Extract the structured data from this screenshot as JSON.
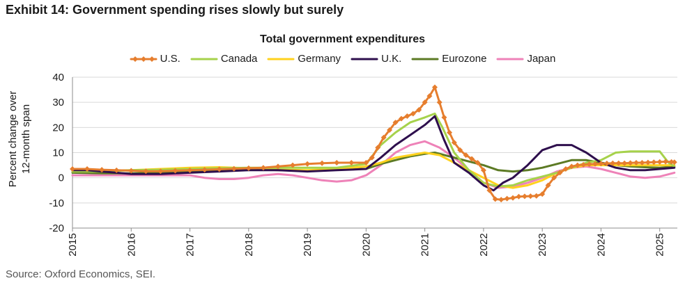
{
  "exhibit_title": "Exhibit 14: Government spending rises slowly but surely",
  "source": "Source: Oxford Economics, SEI.",
  "colors": {
    "US": "#E67E2E",
    "Canada": "#A6D24B",
    "Germany": "#FFD21E",
    "UK": "#2E0F4D",
    "Eurozone": "#5C7A24",
    "Japan": "#EE82B8",
    "grid": "#D9D9D9",
    "axis": "#8c8c8c"
  },
  "chart_data": {
    "type": "line",
    "title": "Total government expenditures",
    "xlabel": "",
    "ylabel": "Percent change over 12-month span",
    "ylabel_lines": [
      "Percent change over",
      "12-month span"
    ],
    "ylim": [
      -20,
      40
    ],
    "yticks": [
      -20,
      -10,
      0,
      10,
      20,
      30,
      40
    ],
    "xlim": [
      2015,
      2025.3
    ],
    "xticks": [
      "2015",
      "2016",
      "2017",
      "2018",
      "2019",
      "2020",
      "2021",
      "2022",
      "2023",
      "2024",
      "2025"
    ],
    "grid": true,
    "legend_position": "top",
    "series": [
      {
        "name": "U.S.",
        "key": "US",
        "marker": "diamond",
        "x": [
          2015.0,
          2015.25,
          2015.5,
          2015.75,
          2016.0,
          2016.25,
          2016.5,
          2016.75,
          2017.0,
          2017.25,
          2017.5,
          2017.75,
          2018.0,
          2018.25,
          2018.5,
          2018.75,
          2019.0,
          2019.25,
          2019.5,
          2019.75,
          2020.0,
          2020.1,
          2020.2,
          2020.3,
          2020.4,
          2020.5,
          2020.6,
          2020.7,
          2020.8,
          2020.9,
          2021.0,
          2021.08,
          2021.17,
          2021.25,
          2021.33,
          2021.42,
          2021.5,
          2021.6,
          2021.7,
          2021.8,
          2021.9,
          2022.0,
          2022.1,
          2022.2,
          2022.3,
          2022.4,
          2022.5,
          2022.6,
          2022.7,
          2022.8,
          2022.9,
          2023.0,
          2023.1,
          2023.2,
          2023.3,
          2023.4,
          2023.5,
          2023.6,
          2023.7,
          2023.8,
          2023.9,
          2024.0,
          2024.1,
          2024.2,
          2024.3,
          2024.4,
          2024.5,
          2024.6,
          2024.7,
          2024.8,
          2024.9,
          2025.0,
          2025.1,
          2025.2,
          2025.25
        ],
        "values": [
          3.5,
          3.5,
          3.2,
          3.0,
          2.8,
          2.6,
          2.6,
          2.8,
          3.0,
          3.2,
          3.4,
          3.6,
          3.8,
          4.0,
          4.5,
          5.0,
          5.5,
          5.8,
          6.0,
          6.0,
          6.0,
          8.0,
          12.0,
          16.0,
          19.0,
          22.0,
          23.5,
          24.5,
          25.5,
          27.0,
          30.0,
          32.5,
          36.0,
          30.0,
          24.0,
          18.0,
          14.0,
          11.0,
          9.0,
          7.5,
          6.0,
          3.0,
          -5.0,
          -8.5,
          -8.7,
          -8.3,
          -8.0,
          -7.5,
          -7.4,
          -7.3,
          -7.2,
          -6.5,
          -3.0,
          0.0,
          2.0,
          3.5,
          4.5,
          5.0,
          5.2,
          5.4,
          5.5,
          5.6,
          5.7,
          5.8,
          5.8,
          5.8,
          5.9,
          6.0,
          6.0,
          6.1,
          6.2,
          6.3,
          6.4,
          6.3,
          6.2
        ]
      },
      {
        "name": "Canada",
        "key": "Canada",
        "x": [
          2015.0,
          2015.5,
          2016.0,
          2016.5,
          2017.0,
          2017.5,
          2018.0,
          2018.5,
          2019.0,
          2019.5,
          2020.0,
          2020.25,
          2020.5,
          2020.75,
          2021.0,
          2021.17,
          2021.3,
          2021.5,
          2021.75,
          2022.0,
          2022.25,
          2022.5,
          2022.75,
          2023.0,
          2023.25,
          2023.5,
          2023.75,
          2024.0,
          2024.25,
          2024.5,
          2024.75,
          2025.0,
          2025.15,
          2025.25
        ],
        "values": [
          2.5,
          2.5,
          3.0,
          3.2,
          3.5,
          3.8,
          4.0,
          4.0,
          4.0,
          4.0,
          5.5,
          13.0,
          18.0,
          22.0,
          24.0,
          25.5,
          20.0,
          10.0,
          3.0,
          -2.0,
          -3.5,
          -3.0,
          -1.0,
          0.5,
          2.0,
          4.0,
          6.0,
          7.0,
          10.0,
          10.5,
          10.5,
          10.5,
          6.0,
          4.5
        ]
      },
      {
        "name": "Germany",
        "key": "Germany",
        "x": [
          2015.0,
          2015.5,
          2016.0,
          2016.5,
          2017.0,
          2017.5,
          2018.0,
          2018.5,
          2019.0,
          2019.5,
          2020.0,
          2020.25,
          2020.5,
          2020.75,
          2021.0,
          2021.25,
          2021.5,
          2021.75,
          2022.0,
          2022.25,
          2022.5,
          2022.75,
          2023.0,
          2023.25,
          2023.5,
          2023.75,
          2024.0,
          2024.25,
          2024.5,
          2024.75,
          2025.0,
          2025.25
        ],
        "values": [
          2.5,
          2.8,
          3.0,
          3.5,
          4.0,
          4.2,
          3.8,
          3.2,
          3.0,
          3.5,
          4.5,
          6.0,
          8.0,
          9.0,
          10.0,
          9.0,
          6.0,
          3.0,
          0.0,
          -3.0,
          -4.0,
          -3.0,
          -1.0,
          2.0,
          4.0,
          5.0,
          5.0,
          5.0,
          5.0,
          5.0,
          5.0,
          5.0
        ]
      },
      {
        "name": "U.K.",
        "key": "UK",
        "x": [
          2015.0,
          2015.25,
          2015.5,
          2015.75,
          2016.0,
          2016.5,
          2017.0,
          2017.5,
          2018.0,
          2018.5,
          2019.0,
          2019.5,
          2020.0,
          2020.25,
          2020.5,
          2020.75,
          2021.0,
          2021.17,
          2021.33,
          2021.5,
          2021.75,
          2022.0,
          2022.17,
          2022.33,
          2022.5,
          2022.75,
          2023.0,
          2023.25,
          2023.5,
          2023.75,
          2024.0,
          2024.25,
          2024.5,
          2024.75,
          2025.0,
          2025.25
        ],
        "values": [
          3.0,
          3.0,
          2.5,
          2.0,
          1.5,
          1.5,
          2.0,
          2.5,
          3.0,
          3.0,
          2.5,
          3.0,
          3.5,
          8.0,
          13.0,
          17.0,
          21.0,
          24.5,
          15.0,
          6.0,
          2.0,
          -3.0,
          -5.0,
          -2.0,
          0.0,
          5.0,
          11.0,
          13.0,
          13.0,
          10.0,
          6.0,
          4.0,
          3.0,
          3.0,
          3.5,
          4.0
        ]
      },
      {
        "name": "Eurozone",
        "key": "Eurozone",
        "x": [
          2015.0,
          2015.5,
          2016.0,
          2016.5,
          2017.0,
          2017.5,
          2018.0,
          2018.5,
          2019.0,
          2019.5,
          2020.0,
          2020.25,
          2020.5,
          2020.75,
          2021.0,
          2021.17,
          2021.5,
          2021.75,
          2022.0,
          2022.25,
          2022.5,
          2022.75,
          2023.0,
          2023.25,
          2023.5,
          2023.75,
          2024.0,
          2024.25,
          2024.5,
          2024.75,
          2025.0,
          2025.25
        ],
        "values": [
          2.0,
          1.8,
          1.8,
          2.0,
          2.5,
          3.0,
          3.5,
          3.0,
          2.8,
          3.5,
          3.5,
          5.5,
          7.0,
          8.5,
          9.5,
          10.0,
          8.0,
          6.5,
          5.0,
          3.0,
          2.5,
          3.0,
          4.0,
          5.5,
          7.0,
          7.0,
          6.0,
          5.0,
          4.5,
          4.2,
          4.0,
          4.5
        ]
      },
      {
        "name": "Japan",
        "key": "Japan",
        "x": [
          2015.0,
          2015.5,
          2016.0,
          2016.5,
          2017.0,
          2017.25,
          2017.5,
          2017.75,
          2018.0,
          2018.25,
          2018.5,
          2018.75,
          2019.0,
          2019.25,
          2019.5,
          2019.75,
          2020.0,
          2020.25,
          2020.5,
          2020.75,
          2021.0,
          2021.25,
          2021.5,
          2021.75,
          2022.0,
          2022.25,
          2022.5,
          2022.75,
          2023.0,
          2023.25,
          2023.5,
          2023.75,
          2024.0,
          2024.25,
          2024.5,
          2024.75,
          2025.0,
          2025.25
        ],
        "values": [
          1.0,
          1.0,
          1.0,
          1.0,
          1.0,
          0.0,
          -0.5,
          -0.5,
          0.0,
          1.0,
          1.5,
          1.0,
          0.0,
          -1.0,
          -1.5,
          -1.0,
          1.0,
          5.0,
          10.0,
          13.0,
          14.5,
          12.0,
          8.0,
          3.0,
          -2.0,
          -4.0,
          -3.5,
          -2.0,
          0.0,
          2.5,
          4.0,
          4.5,
          3.5,
          2.0,
          0.5,
          0.0,
          0.5,
          2.0
        ]
      }
    ]
  }
}
